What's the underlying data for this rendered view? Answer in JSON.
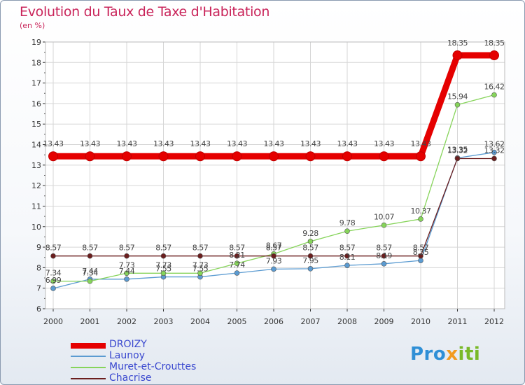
{
  "chart_data": {
    "type": "line",
    "title": "Evolution du Taux de Taxe d'Habitation",
    "subtitle": "(en %)",
    "xlabel": "",
    "ylabel": "",
    "x": [
      "2000",
      "2001",
      "2002",
      "2003",
      "2004",
      "2005",
      "2006",
      "2007",
      "2008",
      "2009",
      "2010",
      "2011",
      "2012"
    ],
    "ylim": [
      6,
      19
    ],
    "yticks": [
      6,
      7,
      8,
      9,
      10,
      11,
      12,
      13,
      14,
      15,
      16,
      17,
      18,
      19
    ],
    "grid": true,
    "series": [
      {
        "name": "DROIZY",
        "color": "#e50000",
        "width": 9,
        "labels_shown": true,
        "values": [
          13.43,
          13.43,
          13.43,
          13.43,
          13.43,
          13.43,
          13.43,
          13.43,
          13.43,
          13.43,
          13.43,
          18.35,
          18.35
        ],
        "labels": [
          "13.43",
          "13.43",
          "13.43",
          "13.43",
          "13.43",
          "13.43",
          "13.43",
          "13.43",
          "13.43",
          "13.43",
          "13.43",
          "18.35",
          "18.35"
        ]
      },
      {
        "name": "Launoy",
        "color": "#5b9bd1",
        "width": 1.3,
        "labels_shown": true,
        "values": [
          6.99,
          7.44,
          7.44,
          7.55,
          7.55,
          7.74,
          7.93,
          7.95,
          8.11,
          8.19,
          8.35,
          13.35,
          13.62
        ],
        "labels": [
          "6.99",
          "7.44",
          "7.44",
          "7.55",
          "7.55",
          "7.74",
          "7.93",
          "7.95",
          "8.11",
          "8.19",
          "8.35",
          "13.35",
          "13.62"
        ]
      },
      {
        "name": "Muret-et-Crouttes",
        "color": "#86d45a",
        "width": 1.3,
        "labels_shown": true,
        "values": [
          7.34,
          7.34,
          7.73,
          7.73,
          7.73,
          8.21,
          8.67,
          9.28,
          9.78,
          10.07,
          10.37,
          15.94,
          16.42
        ],
        "labels": [
          "7.34",
          "7.34",
          "7.73",
          "7.73",
          "7.73",
          "8.21",
          "8.67",
          "9.28",
          "9.78",
          "10.07",
          "10.37",
          "15.94",
          "16.42"
        ]
      },
      {
        "name": "Chacrise",
        "color": "#6b1e1e",
        "width": 1.3,
        "labels_shown": true,
        "values": [
          8.57,
          8.57,
          8.57,
          8.57,
          8.57,
          8.57,
          8.57,
          8.57,
          8.57,
          8.57,
          8.57,
          13.32,
          13.32
        ],
        "labels": [
          "8.57",
          "8.57",
          "8.57",
          "8.57",
          "8.57",
          "8.57",
          "8.57",
          "8.57",
          "8.57",
          "8.57",
          "8.57",
          "13.32",
          "13.32"
        ]
      }
    ]
  },
  "legend": {
    "placement": "bottom-left",
    "items": [
      "DROIZY",
      "Launoy",
      "Muret-et-Crouttes",
      "Chacrise"
    ]
  },
  "logo": {
    "part1": "Pro",
    "part2": "x",
    "part3": "iti"
  }
}
